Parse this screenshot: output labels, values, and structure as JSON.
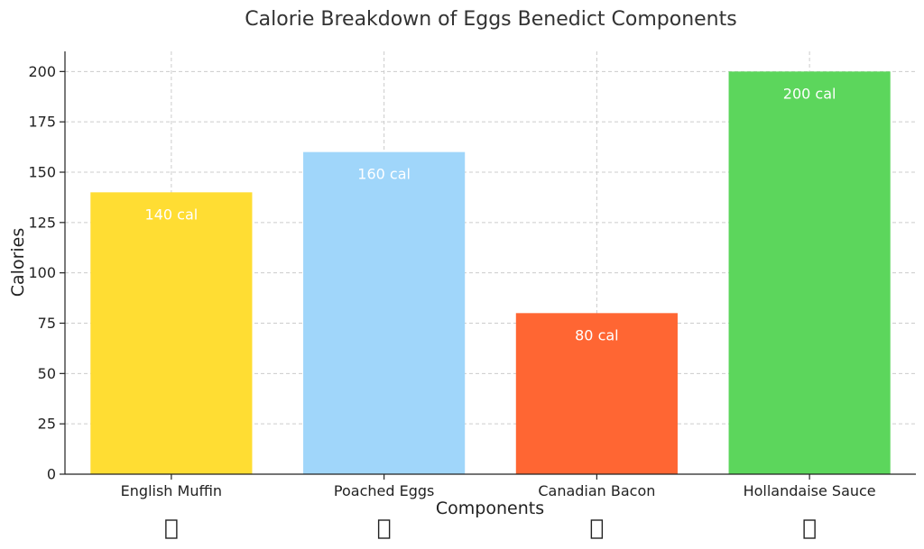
{
  "chart_data": {
    "type": "bar",
    "title": "Calorie Breakdown of Eggs Benedict Components",
    "xlabel": "Components",
    "ylabel": "Calories",
    "categories": [
      "English Muffin",
      "Poached Eggs",
      "Canadian Bacon",
      "Hollandaise Sauce"
    ],
    "values": [
      140,
      160,
      80,
      200
    ],
    "value_labels": [
      "140 cal",
      "160 cal",
      "80 cal",
      "200 cal"
    ],
    "colors": [
      "#FFDD33",
      "#A0D6FA",
      "#FF6633",
      "#5CD65C"
    ],
    "ylim": [
      0,
      210
    ],
    "yticks": [
      0,
      25,
      50,
      75,
      100,
      125,
      150,
      175,
      200
    ],
    "grid": true,
    "icons": [
      "placeholder-glyph-icon",
      "placeholder-glyph-icon",
      "placeholder-glyph-icon",
      "placeholder-glyph-icon"
    ]
  }
}
